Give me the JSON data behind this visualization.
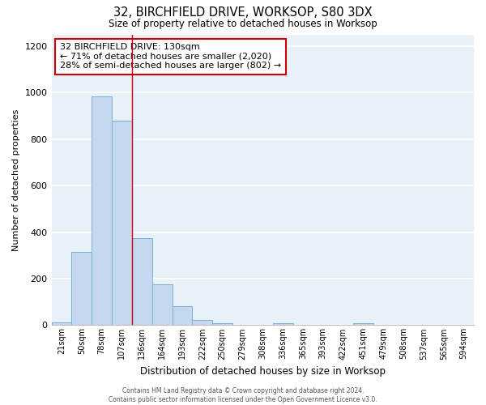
{
  "title_line1": "32, BIRCHFIELD DRIVE, WORKSOP, S80 3DX",
  "title_line2": "Size of property relative to detached houses in Worksop",
  "xlabel": "Distribution of detached houses by size in Worksop",
  "ylabel": "Number of detached properties",
  "categories": [
    "21sqm",
    "50sqm",
    "78sqm",
    "107sqm",
    "136sqm",
    "164sqm",
    "193sqm",
    "222sqm",
    "250sqm",
    "279sqm",
    "308sqm",
    "336sqm",
    "365sqm",
    "393sqm",
    "422sqm",
    "451sqm",
    "479sqm",
    "508sqm",
    "537sqm",
    "565sqm",
    "594sqm"
  ],
  "values": [
    12,
    315,
    985,
    880,
    375,
    175,
    80,
    22,
    10,
    0,
    0,
    10,
    0,
    0,
    0,
    10,
    0,
    0,
    0,
    0,
    0
  ],
  "bar_color": "#c5d8f0",
  "bar_edge_color": "#7aafd4",
  "background_color": "#e8f0f8",
  "grid_color": "#ffffff",
  "red_line_x": 3.5,
  "annotation_text": "32 BIRCHFIELD DRIVE: 130sqm\n← 71% of detached houses are smaller (2,020)\n28% of semi-detached houses are larger (802) →",
  "annotation_box_color": "#ffffff",
  "annotation_border_color": "#cc0000",
  "footer_line1": "Contains HM Land Registry data © Crown copyright and database right 2024.",
  "footer_line2": "Contains public sector information licensed under the Open Government Licence v3.0.",
  "fig_background": "#ffffff",
  "ylim": [
    0,
    1250
  ],
  "yticks": [
    0,
    200,
    400,
    600,
    800,
    1000,
    1200
  ]
}
